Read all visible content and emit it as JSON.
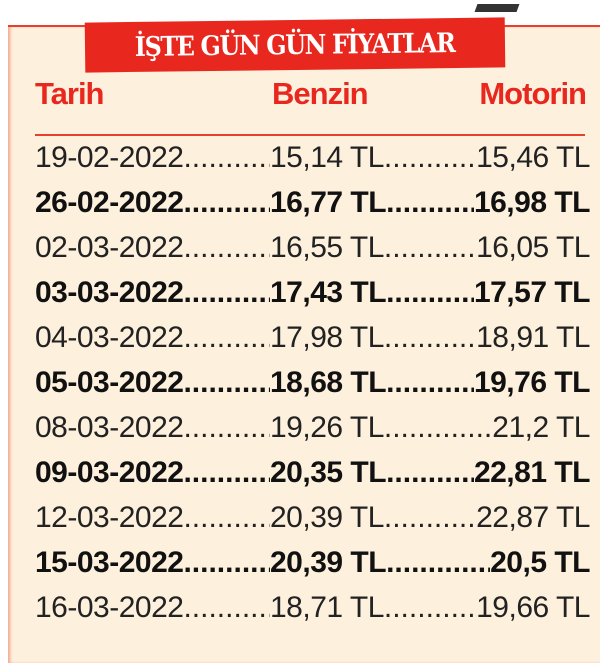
{
  "title": "İŞTE GÜN GÜN FİYATLAR",
  "columns": {
    "date": "Tarih",
    "gasoline": "Benzin",
    "diesel": "Motorin"
  },
  "colors": {
    "accent": "#e8281e",
    "background": "#fdf0dd",
    "text": "#222222"
  },
  "rows": [
    {
      "date": "19-02-2022",
      "gasoline": "15,14 TL",
      "diesel": "15,46 TL",
      "bold": false
    },
    {
      "date": "26-02-2022",
      "gasoline": "16,77 TL",
      "diesel": "16,98 TL",
      "bold": true
    },
    {
      "date": "02-03-2022",
      "gasoline": "16,55 TL",
      "diesel": "16,05 TL",
      "bold": false
    },
    {
      "date": "03-03-2022",
      "gasoline": "17,43 TL",
      "diesel": "17,57 TL",
      "bold": true
    },
    {
      "date": "04-03-2022",
      "gasoline": "17,98 TL",
      "diesel": "18,91 TL",
      "bold": false
    },
    {
      "date": "05-03-2022",
      "gasoline": "18,68 TL",
      "diesel": "19,76 TL",
      "bold": true
    },
    {
      "date": "08-03-2022",
      "gasoline": "19,26 TL",
      "diesel": "21,2 TL",
      "bold": false
    },
    {
      "date": "09-03-2022",
      "gasoline": "20,35 TL",
      "diesel": "22,81 TL",
      "bold": true
    },
    {
      "date": "12-03-2022",
      "gasoline": "20,39 TL",
      "diesel": "22,87 TL",
      "bold": false
    },
    {
      "date": "15-03-2022",
      "gasoline": "20,39 TL",
      "diesel": "20,5 TL",
      "bold": true
    },
    {
      "date": "16-03-2022",
      "gasoline": "18,71 TL",
      "diesel": "19,66 TL",
      "bold": false
    }
  ]
}
